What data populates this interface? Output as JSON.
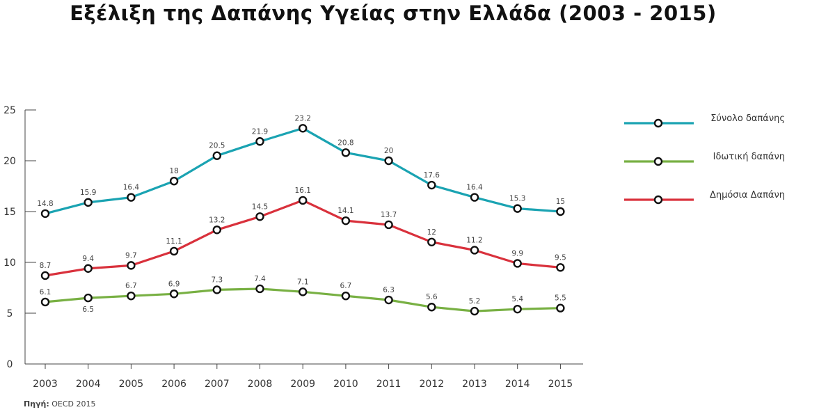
{
  "chart_data": {
    "type": "line",
    "title": "Εξέλιξη της Δαπάνης Υγείας στην Ελλάδα (2003 - 2015)",
    "categories": [
      "2003",
      "2004",
      "2005",
      "2006",
      "2007",
      "2008",
      "2009",
      "2010",
      "2011",
      "2012",
      "2013",
      "2014",
      "2015"
    ],
    "ylim": [
      0,
      25
    ],
    "yticks": [
      0,
      5,
      10,
      15,
      20,
      25
    ],
    "legend_position": "right",
    "grid": false,
    "series": [
      {
        "name": "Σύνολο δαπάνης",
        "color": "#1aa3b2",
        "values": [
          14.8,
          15.9,
          16.4,
          18,
          20.5,
          21.9,
          23.2,
          20.8,
          20,
          17.6,
          16.4,
          15.3,
          15
        ],
        "labels": [
          "14.8",
          "15.9",
          "16.4",
          "18",
          "20.5",
          "21.9",
          "23.2",
          "20.8",
          "20",
          "17.6",
          "16.4",
          "15.3",
          "15"
        ]
      },
      {
        "name": "Ιδωτική δαπάνη",
        "color": "#78b043",
        "values": [
          6.1,
          6.5,
          6.7,
          6.9,
          7.3,
          7.4,
          7.1,
          6.7,
          6.3,
          5.6,
          5.2,
          5.4,
          5.5
        ],
        "labels": [
          "6.1",
          "6.5",
          "6.7",
          "6.9",
          "7.3",
          "7.4",
          "7.1",
          "6.7",
          "6.3",
          "5.6",
          "5.2",
          "5.4",
          "5.5"
        ]
      },
      {
        "name": "Δημόσια Δαπάνη",
        "color": "#d9313c",
        "values": [
          8.7,
          9.4,
          9.7,
          11.1,
          13.2,
          14.5,
          16.1,
          14.1,
          13.7,
          12,
          11.2,
          9.9,
          9.5
        ],
        "labels": [
          "8.7",
          "9.4",
          "9.7",
          "11.1",
          "13.2",
          "14.5",
          "16.1",
          "14.1",
          "13.7",
          "12",
          "11.2",
          "9.9",
          "9.5"
        ]
      }
    ],
    "source_label": "Πηγή:",
    "source_text": "OECD 2015"
  }
}
